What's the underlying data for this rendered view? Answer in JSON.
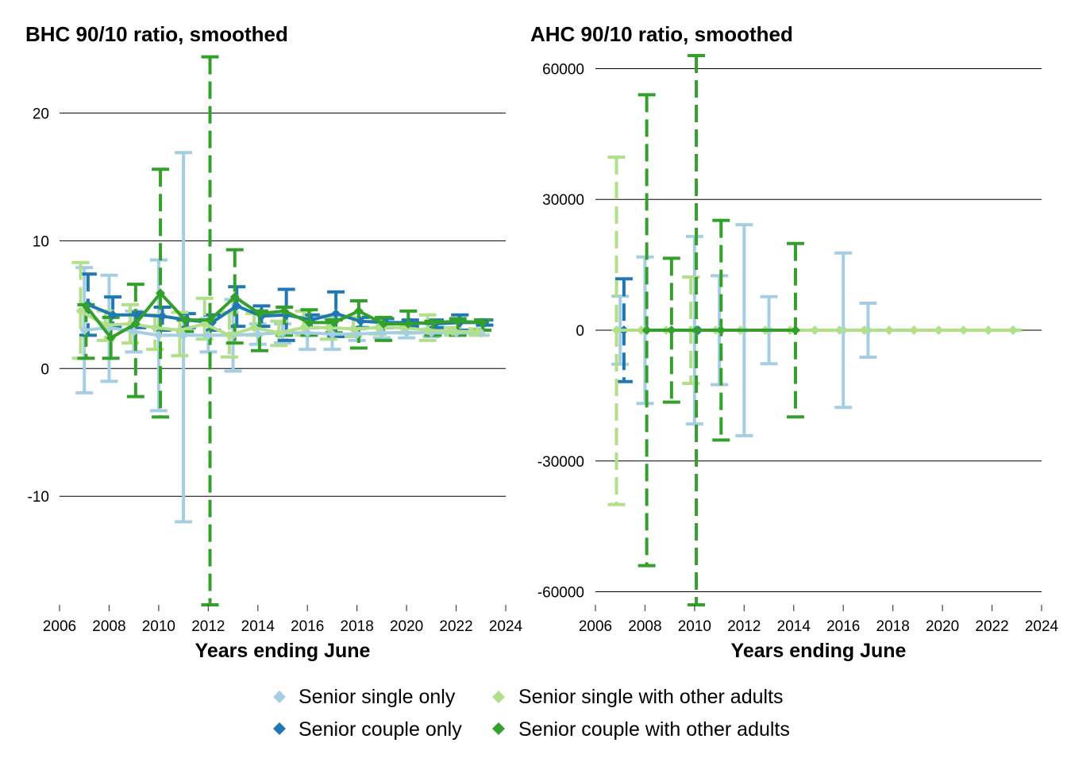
{
  "legend": [
    {
      "label": "Senior single only",
      "color": "#a6cee3"
    },
    {
      "label": "Senior couple only",
      "color": "#1f78b4"
    },
    {
      "label": "Senior single with other adults",
      "color": "#b2df8a"
    },
    {
      "label": "Senior couple with other adults",
      "color": "#33a02c"
    }
  ],
  "chart_data": [
    {
      "type": "line",
      "title": "BHC 90/10 ratio, smoothed",
      "xlabel": "Years ending June",
      "ylabel": "",
      "xlim": [
        2006,
        2024
      ],
      "xticks": [
        2006,
        2008,
        2010,
        2012,
        2014,
        2016,
        2018,
        2020,
        2022,
        2024
      ],
      "ylim": [
        -18.5,
        24.5
      ],
      "yticks": [
        -10,
        0,
        10,
        20
      ],
      "grid": "horizontal",
      "series": [
        {
          "name": "Senior single only",
          "color": "#a6cee3",
          "points": [
            {
              "x": 2007,
              "y": 3.0,
              "lo": -1.9,
              "hi": 7.9
            },
            {
              "x": 2008,
              "y": 3.2,
              "lo": -1.0,
              "hi": 7.3
            },
            {
              "x": 2009,
              "y": 2.9,
              "lo": 1.3,
              "hi": 4.5
            },
            {
              "x": 2010,
              "y": 2.6,
              "lo": -3.3,
              "hi": 8.5
            },
            {
              "x": 2011,
              "y": 2.6,
              "lo": -12.0,
              "hi": 16.9
            },
            {
              "x": 2012,
              "y": 2.6,
              "lo": 1.3,
              "hi": 3.9
            },
            {
              "x": 2013,
              "y": 2.6,
              "lo": -0.2,
              "hi": 5.4
            },
            {
              "x": 2014,
              "y": 2.7,
              "lo": 1.9,
              "hi": 3.5
            },
            {
              "x": 2015,
              "y": 2.8,
              "lo": 2.0,
              "hi": 3.5
            },
            {
              "x": 2016,
              "y": 2.8,
              "lo": 1.5,
              "hi": 4.0
            },
            {
              "x": 2017,
              "y": 2.7,
              "lo": 1.5,
              "hi": 3.9
            },
            {
              "x": 2018,
              "y": 2.7,
              "lo": 2.2,
              "hi": 3.1
            },
            {
              "x": 2019,
              "y": 2.8,
              "lo": 2.4,
              "hi": 3.2
            },
            {
              "x": 2020,
              "y": 2.8,
              "lo": 2.4,
              "hi": 3.2
            },
            {
              "x": 2021,
              "y": 2.8,
              "lo": 2.5,
              "hi": 3.1
            },
            {
              "x": 2022,
              "y": 2.8,
              "lo": 2.6,
              "hi": 3.0
            },
            {
              "x": 2023,
              "y": 2.8,
              "lo": 2.6,
              "hi": 3.0
            }
          ]
        },
        {
          "name": "Senior couple only",
          "color": "#1f78b4",
          "points": [
            {
              "x": 2007,
              "y": 5.0,
              "lo": 2.6,
              "hi": 7.4
            },
            {
              "x": 2008,
              "y": 4.2,
              "lo": 3.3,
              "hi": 5.6
            },
            {
              "x": 2009,
              "y": 4.2,
              "lo": 3.2,
              "hi": 4.4
            },
            {
              "x": 2010,
              "y": 4.1,
              "lo": 3.0,
              "hi": 4.8
            },
            {
              "x": 2011,
              "y": 3.8,
              "lo": 3.2,
              "hi": 4.3
            },
            {
              "x": 2012,
              "y": 3.6,
              "lo": 3.0,
              "hi": 4.2
            },
            {
              "x": 2013,
              "y": 4.9,
              "lo": 3.3,
              "hi": 6.4
            },
            {
              "x": 2014,
              "y": 4.1,
              "lo": 3.3,
              "hi": 4.9
            },
            {
              "x": 2015,
              "y": 4.2,
              "lo": 2.2,
              "hi": 6.2
            },
            {
              "x": 2016,
              "y": 3.8,
              "lo": 3.2,
              "hi": 4.2
            },
            {
              "x": 2017,
              "y": 4.3,
              "lo": 2.5,
              "hi": 6.0
            },
            {
              "x": 2018,
              "y": 3.7,
              "lo": 3.2,
              "hi": 4.0
            },
            {
              "x": 2019,
              "y": 3.6,
              "lo": 3.2,
              "hi": 3.9
            },
            {
              "x": 2020,
              "y": 3.6,
              "lo": 3.3,
              "hi": 3.8
            },
            {
              "x": 2021,
              "y": 3.5,
              "lo": 3.2,
              "hi": 3.8
            },
            {
              "x": 2022,
              "y": 3.6,
              "lo": 3.0,
              "hi": 4.2
            },
            {
              "x": 2023,
              "y": 3.6,
              "lo": 3.4,
              "hi": 3.8
            }
          ]
        },
        {
          "name": "Senior single with other adults",
          "color": "#b2df8a",
          "points": [
            {
              "x": 2007,
              "y": 4.5,
              "lo": 0.8,
              "hi": 8.3
            },
            {
              "x": 2008,
              "y": 3.4,
              "lo": 2.2,
              "hi": 4.5
            },
            {
              "x": 2009,
              "y": 3.5,
              "lo": 2.0,
              "hi": 5.0
            },
            {
              "x": 2010,
              "y": 3.2,
              "lo": 1.5,
              "hi": 4.2
            },
            {
              "x": 2011,
              "y": 3.0,
              "lo": 1.0,
              "hi": 4.4
            },
            {
              "x": 2012,
              "y": 3.5,
              "lo": 2.3,
              "hi": 5.5
            },
            {
              "x": 2013,
              "y": 2.6,
              "lo": 0.9,
              "hi": 4.4
            },
            {
              "x": 2014,
              "y": 3.2,
              "lo": 2.6,
              "hi": 4.3
            },
            {
              "x": 2015,
              "y": 2.8,
              "lo": 1.8,
              "hi": 3.7
            },
            {
              "x": 2016,
              "y": 3.2,
              "lo": 2.6,
              "hi": 4.5
            },
            {
              "x": 2017,
              "y": 3.2,
              "lo": 2.3,
              "hi": 4.1
            },
            {
              "x": 2018,
              "y": 3.1,
              "lo": 2.5,
              "hi": 4.0
            },
            {
              "x": 2019,
              "y": 3.2,
              "lo": 2.7,
              "hi": 3.7
            },
            {
              "x": 2020,
              "y": 3.2,
              "lo": 2.8,
              "hi": 3.5
            },
            {
              "x": 2021,
              "y": 3.0,
              "lo": 2.2,
              "hi": 4.2
            },
            {
              "x": 2022,
              "y": 2.9,
              "lo": 2.6,
              "hi": 3.2
            },
            {
              "x": 2023,
              "y": 2.9,
              "lo": 2.6,
              "hi": 3.1
            }
          ]
        },
        {
          "name": "Senior couple with other adults",
          "color": "#33a02c",
          "points": [
            {
              "x": 2007,
              "y": 4.9,
              "lo": 0.8,
              "hi": 5.0
            },
            {
              "x": 2008,
              "y": 2.4,
              "lo": 0.8,
              "hi": 4.0
            },
            {
              "x": 2009,
              "y": 3.5,
              "lo": -2.2,
              "hi": 6.6
            },
            {
              "x": 2010,
              "y": 5.9,
              "lo": -3.8,
              "hi": 15.6
            },
            {
              "x": 2011,
              "y": 3.8,
              "lo": 2.9,
              "hi": 3.8
            },
            {
              "x": 2012,
              "y": 3.8,
              "lo": -18.5,
              "hi": 24.4
            },
            {
              "x": 2013,
              "y": 5.6,
              "lo": 2.0,
              "hi": 9.3
            },
            {
              "x": 2014,
              "y": 4.3,
              "lo": 1.4,
              "hi": 4.5
            },
            {
              "x": 2015,
              "y": 4.5,
              "lo": 2.6,
              "hi": 4.8
            },
            {
              "x": 2016,
              "y": 3.6,
              "lo": 2.6,
              "hi": 4.6
            },
            {
              "x": 2017,
              "y": 3.6,
              "lo": 2.8,
              "hi": 3.8
            },
            {
              "x": 2018,
              "y": 4.5,
              "lo": 1.6,
              "hi": 5.3
            },
            {
              "x": 2019,
              "y": 3.5,
              "lo": 2.2,
              "hi": 4.0
            },
            {
              "x": 2020,
              "y": 3.5,
              "lo": 2.8,
              "hi": 4.5
            },
            {
              "x": 2021,
              "y": 3.6,
              "lo": 2.6,
              "hi": 3.7
            },
            {
              "x": 2022,
              "y": 3.7,
              "lo": 2.6,
              "hi": 3.9
            },
            {
              "x": 2023,
              "y": 3.6,
              "lo": 3.0,
              "hi": 3.8
            }
          ]
        }
      ]
    },
    {
      "type": "line",
      "title": "AHC 90/10 ratio, smoothed",
      "xlabel": "Years ending June",
      "ylabel": "",
      "xlim": [
        2006,
        2024
      ],
      "xticks": [
        2006,
        2008,
        2010,
        2012,
        2014,
        2016,
        2018,
        2020,
        2022,
        2024
      ],
      "ylim": [
        -63000,
        63000
      ],
      "yticks": [
        -60000,
        -30000,
        0,
        30000,
        60000
      ],
      "grid": "horizontal",
      "series": [
        {
          "name": "Senior single only",
          "color": "#a6cee3",
          "points": [
            {
              "x": 2007,
              "y": 0,
              "lo": -7800,
              "hi": 7800
            },
            {
              "x": 2008,
              "y": 0,
              "lo": -16800,
              "hi": 16800
            },
            {
              "x": 2010,
              "y": 0,
              "lo": -21500,
              "hi": 21500
            },
            {
              "x": 2011,
              "y": 0,
              "lo": -12500,
              "hi": 12500
            },
            {
              "x": 2012,
              "y": 0,
              "lo": -24200,
              "hi": 24200
            },
            {
              "x": 2013,
              "y": 0,
              "lo": -7700,
              "hi": 7700
            },
            {
              "x": 2016,
              "y": 0,
              "lo": -17700,
              "hi": 17700
            },
            {
              "x": 2017,
              "y": 0,
              "lo": -6200,
              "hi": 6200
            }
          ]
        },
        {
          "name": "Senior couple only",
          "color": "#1f78b4",
          "points": [
            {
              "x": 2007,
              "y": 0,
              "lo": -11800,
              "hi": 11800
            },
            {
              "x": 2010,
              "y": 0,
              "lo": 0,
              "hi": 0
            }
          ]
        },
        {
          "name": "Senior single with other adults",
          "color": "#b2df8a",
          "points": [
            {
              "x": 2007,
              "y": 0,
              "lo": -40000,
              "hi": 39700
            },
            {
              "x": 2008,
              "y": 0,
              "lo": 0,
              "hi": 0
            },
            {
              "x": 2009,
              "y": 0,
              "lo": 0,
              "hi": 0
            },
            {
              "x": 2010,
              "y": 0,
              "lo": -12200,
              "hi": 12200
            },
            {
              "x": 2011,
              "y": 0,
              "lo": 0,
              "hi": 0
            },
            {
              "x": 2012,
              "y": 0,
              "lo": 0,
              "hi": 0
            },
            {
              "x": 2013,
              "y": 0,
              "lo": 0,
              "hi": 0
            },
            {
              "x": 2014,
              "y": 0,
              "lo": 0,
              "hi": 0
            },
            {
              "x": 2015,
              "y": 0,
              "lo": 0,
              "hi": 0
            },
            {
              "x": 2016,
              "y": 0,
              "lo": 0,
              "hi": 0
            },
            {
              "x": 2017,
              "y": 0,
              "lo": 0,
              "hi": 0
            },
            {
              "x": 2018,
              "y": 0,
              "lo": 0,
              "hi": 0
            },
            {
              "x": 2019,
              "y": 0,
              "lo": 0,
              "hi": 0
            },
            {
              "x": 2020,
              "y": 0,
              "lo": 0,
              "hi": 0
            },
            {
              "x": 2021,
              "y": 0,
              "lo": 0,
              "hi": 0
            },
            {
              "x": 2022,
              "y": 0,
              "lo": 0,
              "hi": 0
            },
            {
              "x": 2023,
              "y": 0,
              "lo": 0,
              "hi": 0
            }
          ]
        },
        {
          "name": "Senior couple with other adults",
          "color": "#33a02c",
          "points": [
            {
              "x": 2008,
              "y": 0,
              "lo": -54000,
              "hi": 54000
            },
            {
              "x": 2009,
              "y": 0,
              "lo": -16500,
              "hi": 16500
            },
            {
              "x": 2010,
              "y": 0,
              "lo": -63000,
              "hi": 63000
            },
            {
              "x": 2011,
              "y": 0,
              "lo": -25200,
              "hi": 25200
            },
            {
              "x": 2014,
              "y": 0,
              "lo": -19900,
              "hi": 19900
            }
          ]
        }
      ]
    }
  ]
}
